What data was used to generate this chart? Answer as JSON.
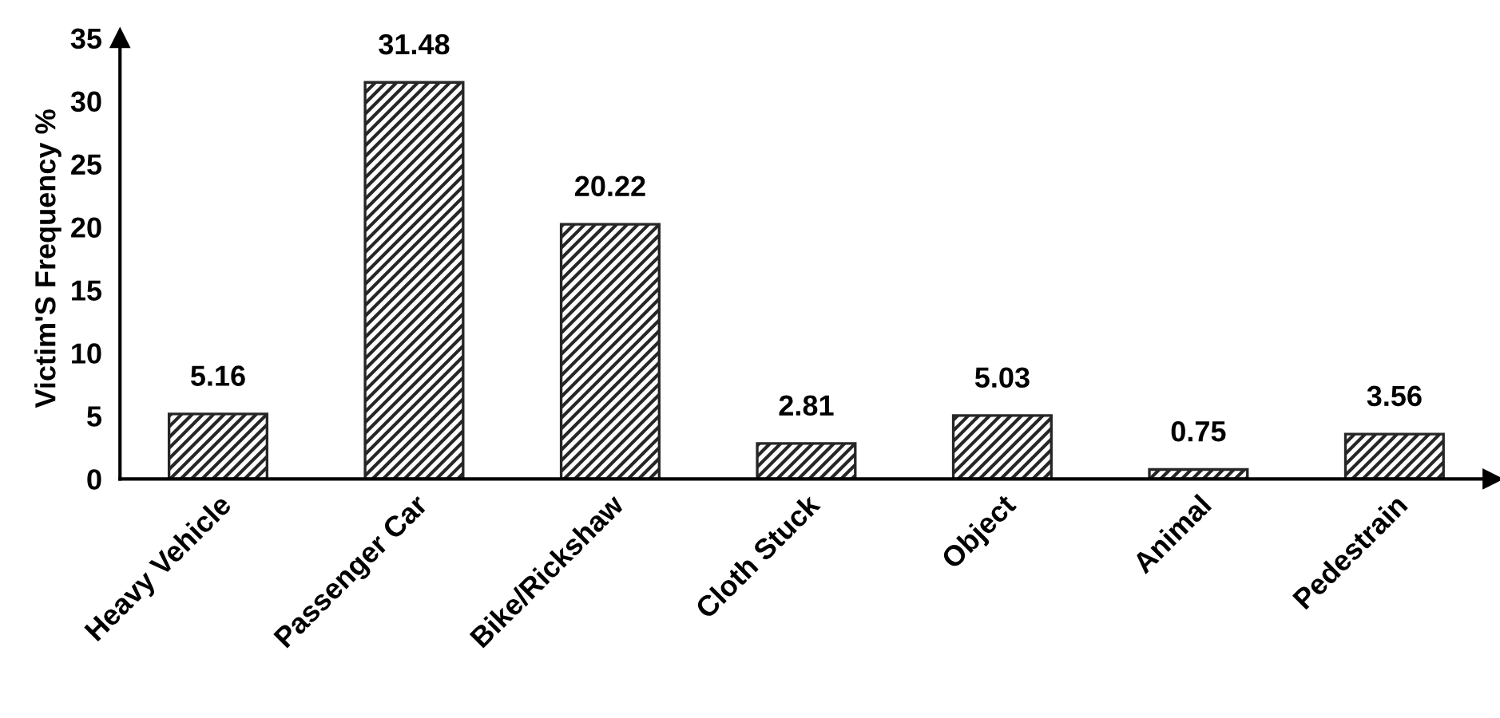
{
  "chart_data": {
    "type": "bar",
    "ylabel": "Victim'S Frequency %",
    "categories": [
      "Heavy Vehicle",
      "Passenger Car",
      "Bike/Rickshaw",
      "Cloth Stuck",
      "Object",
      "Animal",
      "Pedestrain"
    ],
    "values": [
      5.16,
      31.48,
      20.22,
      2.81,
      5.03,
      0.75,
      3.56
    ],
    "color": "#262626",
    "ylim": [
      0,
      35
    ],
    "yticks": [
      0,
      5,
      10,
      15,
      20,
      25,
      30,
      35
    ],
    "grid": false,
    "data_labels": true
  }
}
